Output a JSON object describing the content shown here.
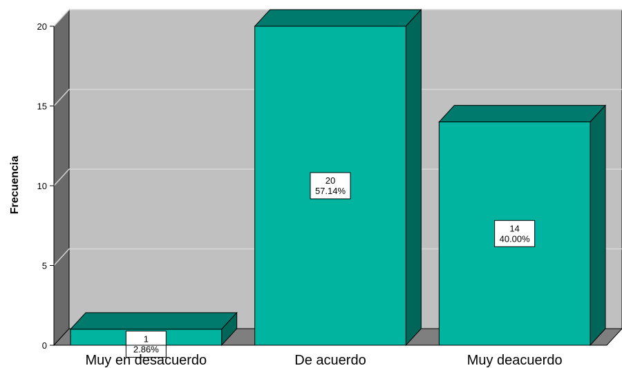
{
  "chart_data": {
    "type": "bar",
    "style": "3d",
    "categories": [
      "Muy en desacuerdo",
      "De acuerdo",
      "Muy deacuerdo"
    ],
    "values": [
      1,
      20,
      14
    ],
    "percent_labels": [
      "2.86%",
      "57.14%",
      "40.00%"
    ],
    "ylabel": "Frecuencia",
    "xlabel": "",
    "ylim": [
      0,
      20
    ],
    "yticks": [
      "0",
      "5",
      "10",
      "15",
      "20"
    ],
    "grid": true,
    "colors": {
      "bar_front": "#00b4a0",
      "bar_top": "#007a6c",
      "bar_side": "#00665a",
      "plot_back": "#c0c0c0",
      "plot_floor": "#7f7f7f",
      "plot_wall": "#6a6a6a",
      "grid": "#d8d8d8"
    }
  }
}
